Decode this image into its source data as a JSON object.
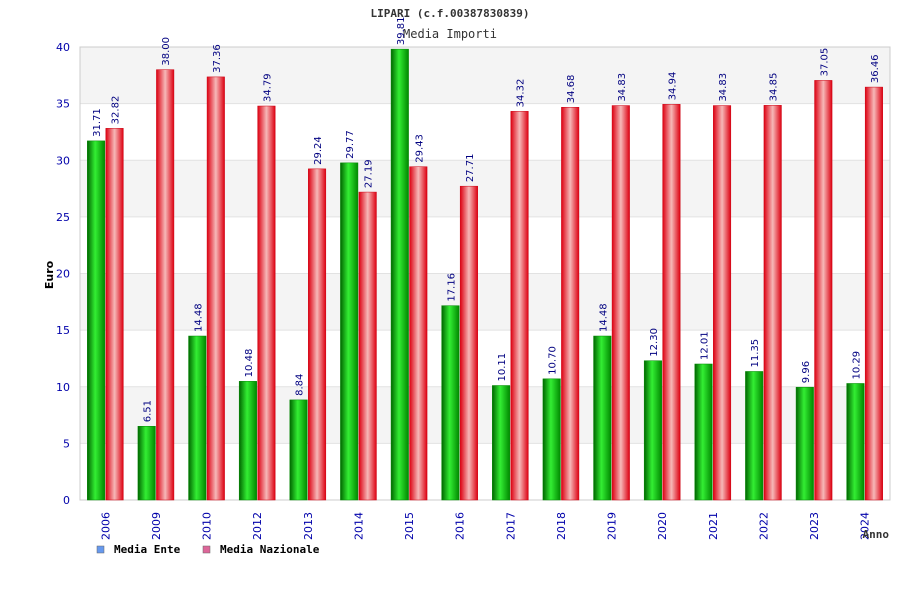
{
  "chart_data": {
    "type": "bar",
    "title": "LIPARI (c.f.00387830839)",
    "subtitle": "Media Importi",
    "xlabel": "Anno",
    "ylabel": "Euro",
    "ylim": [
      0,
      40
    ],
    "yticks": [
      0,
      5,
      10,
      15,
      20,
      25,
      30,
      35,
      40
    ],
    "grid": true,
    "legend_position": "bottom-left",
    "categories": [
      "2006",
      "2009",
      "2010",
      "2012",
      "2013",
      "2014",
      "2015",
      "2016",
      "2017",
      "2018",
      "2019",
      "2020",
      "2021",
      "2022",
      "2023",
      "2024"
    ],
    "series": [
      {
        "name": "Media Ente",
        "legend_color": "#6699ee",
        "bar_color": "#00bb00",
        "values": [
          31.71,
          6.51,
          14.48,
          10.48,
          8.84,
          29.77,
          39.81,
          17.16,
          10.11,
          10.7,
          14.48,
          12.3,
          12.01,
          11.35,
          9.96,
          10.29
        ],
        "labels": [
          "31.71",
          "6.51",
          "14.48",
          "10.48",
          "8.84",
          "29.77",
          "39.81",
          "17.16",
          "10.11",
          "10.70",
          "14.48",
          "12.30",
          "12.01",
          "11.35",
          "9.96",
          "10.29"
        ]
      },
      {
        "name": "Media Nazionale",
        "legend_color": "#dd6699",
        "bar_color": "#ee1122",
        "values": [
          32.82,
          38.0,
          37.36,
          34.79,
          29.24,
          27.19,
          29.43,
          27.71,
          34.32,
          34.68,
          34.83,
          34.94,
          34.83,
          34.85,
          37.05,
          36.46
        ],
        "labels": [
          "32.82",
          "38.00",
          "37.36",
          "34.79",
          "29.24",
          "27.19",
          "29.43",
          "27.71",
          "34.32",
          "34.68",
          "34.83",
          "34.94",
          "34.83",
          "34.85",
          "37.05",
          "36.46"
        ]
      }
    ]
  }
}
